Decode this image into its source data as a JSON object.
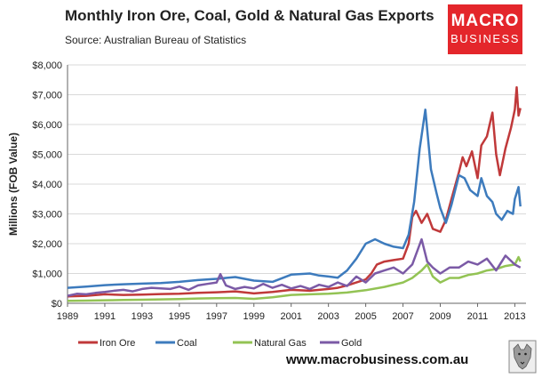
{
  "header": {
    "title": "Monthly Iron Ore, Coal, Gold & Natural Gas Exports",
    "subtitle": "Source: Australian Bureau of Statistics"
  },
  "logo": {
    "line1": "MACRO",
    "line2": "BUSINESS"
  },
  "footer": {
    "url": "www.macrobusiness.com.au"
  },
  "colors": {
    "iron_ore": "#c0393a",
    "coal": "#3d7bbd",
    "natural_gas": "#93c354",
    "gold": "#7b5aa6",
    "logo_bg": "#e4262b"
  },
  "chart_data": {
    "type": "line",
    "title": "Monthly Iron Ore, Coal, Gold & Natural Gas Exports",
    "xlabel": "",
    "ylabel": "Millions (FOB Value)",
    "xlim": [
      1989,
      2013.6
    ],
    "ylim": [
      0,
      8000
    ],
    "x_ticks": [
      "1989",
      "1991",
      "1993",
      "1995",
      "1997",
      "1999",
      "2001",
      "2003",
      "2005",
      "2007",
      "2009",
      "2011",
      "2013"
    ],
    "y_ticks": [
      "$0",
      "$1,000",
      "$2,000",
      "$3,000",
      "$4,000",
      "$5,000",
      "$6,000",
      "$7,000",
      "$8,000"
    ],
    "grid": true,
    "legend_position": "bottom",
    "series": [
      {
        "name": "Iron Ore",
        "color": "#c0393a",
        "x": [
          1989.0,
          1990.0,
          1991.0,
          1992.0,
          1993.0,
          1994.0,
          1995.0,
          1996.0,
          1997.0,
          1998.0,
          1999.0,
          2000.0,
          2001.0,
          2002.0,
          2003.0,
          2003.5,
          2004.0,
          2004.5,
          2005.0,
          2005.3,
          2005.6,
          2006.0,
          2006.5,
          2007.0,
          2007.3,
          2007.5,
          2007.7,
          2008.0,
          2008.3,
          2008.6,
          2009.0,
          2009.3,
          2009.6,
          2010.0,
          2010.2,
          2010.4,
          2010.7,
          2011.0,
          2011.2,
          2011.5,
          2011.8,
          2012.0,
          2012.2,
          2012.5,
          2012.8,
          2013.0,
          2013.1,
          2013.2,
          2013.3
        ],
        "y": [
          230,
          250,
          300,
          280,
          290,
          310,
          320,
          350,
          370,
          400,
          330,
          380,
          450,
          420,
          480,
          520,
          600,
          700,
          800,
          1000,
          1300,
          1400,
          1450,
          1500,
          2000,
          2900,
          3100,
          2700,
          3000,
          2500,
          2400,
          2800,
          3500,
          4400,
          4900,
          4600,
          5100,
          4200,
          5300,
          5600,
          6400,
          5000,
          4300,
          5200,
          5900,
          6500,
          7250,
          6300,
          6550
        ]
      },
      {
        "name": "Coal",
        "color": "#3d7bbd",
        "x": [
          1989.0,
          1990.0,
          1991.0,
          1992.0,
          1993.0,
          1994.0,
          1995.0,
          1996.0,
          1997.0,
          1998.0,
          1999.0,
          2000.0,
          2001.0,
          2002.0,
          2002.5,
          2003.0,
          2003.5,
          2004.0,
          2004.5,
          2005.0,
          2005.5,
          2006.0,
          2006.5,
          2007.0,
          2007.3,
          2007.6,
          2007.9,
          2008.2,
          2008.5,
          2008.8,
          2009.0,
          2009.3,
          2009.6,
          2010.0,
          2010.3,
          2010.6,
          2011.0,
          2011.2,
          2011.5,
          2011.8,
          2012.0,
          2012.3,
          2012.6,
          2012.9,
          2013.0,
          2013.2,
          2013.3
        ],
        "y": [
          520,
          560,
          610,
          640,
          660,
          680,
          720,
          780,
          820,
          880,
          760,
          720,
          960,
          1000,
          930,
          900,
          860,
          1100,
          1500,
          2000,
          2150,
          2000,
          1900,
          1850,
          2300,
          3400,
          5200,
          6500,
          4500,
          3700,
          3200,
          2700,
          3300,
          4300,
          4200,
          3800,
          3600,
          4200,
          3600,
          3400,
          3000,
          2800,
          3100,
          3000,
          3500,
          3900,
          3250
        ]
      },
      {
        "name": "Natural Gas",
        "color": "#93c354",
        "x": [
          1989.0,
          1990.0,
          1991.0,
          1992.0,
          1993.0,
          1994.0,
          1995.0,
          1996.0,
          1997.0,
          1998.0,
          1999.0,
          2000.0,
          2001.0,
          2002.0,
          2003.0,
          2004.0,
          2005.0,
          2006.0,
          2007.0,
          2007.5,
          2008.0,
          2008.3,
          2008.6,
          2009.0,
          2009.5,
          2010.0,
          2010.5,
          2011.0,
          2011.5,
          2012.0,
          2012.5,
          2013.0,
          2013.2,
          2013.3
        ],
        "y": [
          80,
          90,
          100,
          110,
          120,
          130,
          140,
          160,
          170,
          180,
          150,
          200,
          280,
          300,
          320,
          360,
          440,
          550,
          700,
          850,
          1100,
          1300,
          900,
          700,
          850,
          850,
          950,
          1000,
          1100,
          1150,
          1250,
          1300,
          1550,
          1400
        ]
      },
      {
        "name": "Gold",
        "color": "#7b5aa6",
        "x": [
          1989.0,
          1989.5,
          1990.0,
          1990.5,
          1991.0,
          1991.5,
          1992.0,
          1992.5,
          1993.0,
          1993.5,
          1994.0,
          1994.5,
          1995.0,
          1995.5,
          1996.0,
          1996.5,
          1997.0,
          1997.2,
          1997.5,
          1998.0,
          1998.5,
          1999.0,
          1999.5,
          2000.0,
          2000.5,
          2001.0,
          2001.5,
          2002.0,
          2002.5,
          2003.0,
          2003.5,
          2004.0,
          2004.5,
          2005.0,
          2005.5,
          2006.0,
          2006.5,
          2007.0,
          2007.5,
          2008.0,
          2008.3,
          2008.6,
          2009.0,
          2009.5,
          2010.0,
          2010.5,
          2011.0,
          2011.5,
          2012.0,
          2012.5,
          2013.0,
          2013.3
        ],
        "y": [
          250,
          320,
          300,
          350,
          380,
          420,
          450,
          400,
          480,
          520,
          500,
          480,
          560,
          450,
          600,
          650,
          700,
          980,
          600,
          480,
          550,
          500,
          650,
          520,
          620,
          500,
          580,
          480,
          620,
          550,
          700,
          580,
          900,
          700,
          1000,
          1100,
          1200,
          1000,
          1300,
          2150,
          1400,
          1200,
          1000,
          1200,
          1200,
          1400,
          1300,
          1500,
          1100,
          1600,
          1300,
          1200
        ]
      }
    ]
  }
}
